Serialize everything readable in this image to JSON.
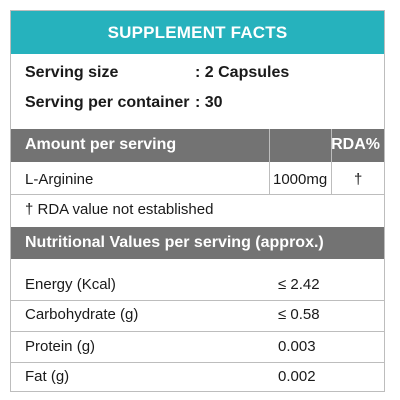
{
  "title": "SUPPLEMENT FACTS",
  "serving": {
    "size_label": "Serving size",
    "size_value": ": 2 Capsules",
    "per_container_label": "Serving per container",
    "per_container_value": ": 30"
  },
  "amount_section": {
    "header": "Amount per serving",
    "rda_header": "RDA%",
    "rows": [
      {
        "name": "L-Arginine",
        "amount": "1000mg",
        "rda": "†"
      }
    ],
    "footnote": "† RDA value not established"
  },
  "nutrition_section": {
    "header": "Nutritional Values per serving (approx.)",
    "rows": [
      {
        "name": "Energy (Kcal)",
        "value": "≤ 2.42"
      },
      {
        "name": "Carbohydrate (g)",
        "value": "≤ 0.58"
      },
      {
        "name": "Protein (g)",
        "value": "0.003"
      },
      {
        "name": "Fat (g)",
        "value": "0.002"
      }
    ]
  },
  "colors": {
    "title_bar": "#26b2bd",
    "section_header": "#737373",
    "border": "#bdbdbd"
  }
}
